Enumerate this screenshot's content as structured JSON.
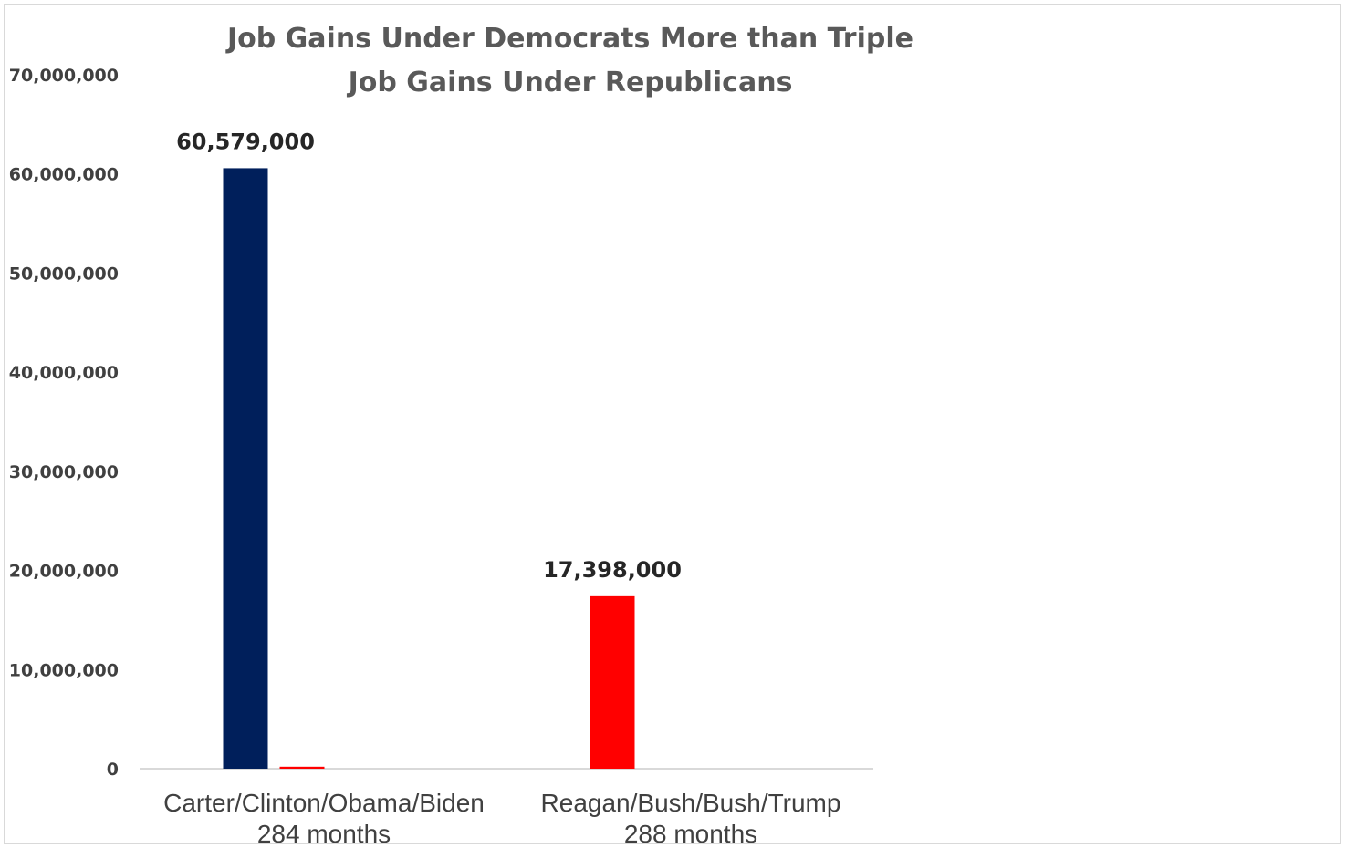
{
  "chart_data": {
    "type": "bar",
    "title": [
      "Job Gains Under Democrats More than Triple",
      "Job Gains Under Republicans"
    ],
    "categories": [
      {
        "line1": "Carter/Clinton/Obama/Biden",
        "line2": "284 months"
      },
      {
        "line1": "Reagan/Bush/Bush/Trump",
        "line2": "288 months"
      }
    ],
    "series": [
      {
        "values": [
          60579000,
          17398000
        ],
        "labels": [
          "60,579,000",
          "17,398,000"
        ],
        "colors": [
          "#001f5b",
          "#ff0000"
        ]
      },
      {
        "values": [
          200000,
          0
        ],
        "labels": [
          "",
          ""
        ],
        "colors": [
          "#ff0000",
          "#ff0000"
        ]
      }
    ],
    "yticks": [
      "0",
      "10,000,000",
      "20,000,000",
      "30,000,000",
      "40,000,000",
      "50,000,000",
      "60,000,000",
      "70,000,000"
    ],
    "ylim": [
      0,
      70000000
    ],
    "grid": false,
    "legend": "none",
    "colors": {
      "axis": "#d9d9d9",
      "border": "#d9d9d9"
    }
  }
}
